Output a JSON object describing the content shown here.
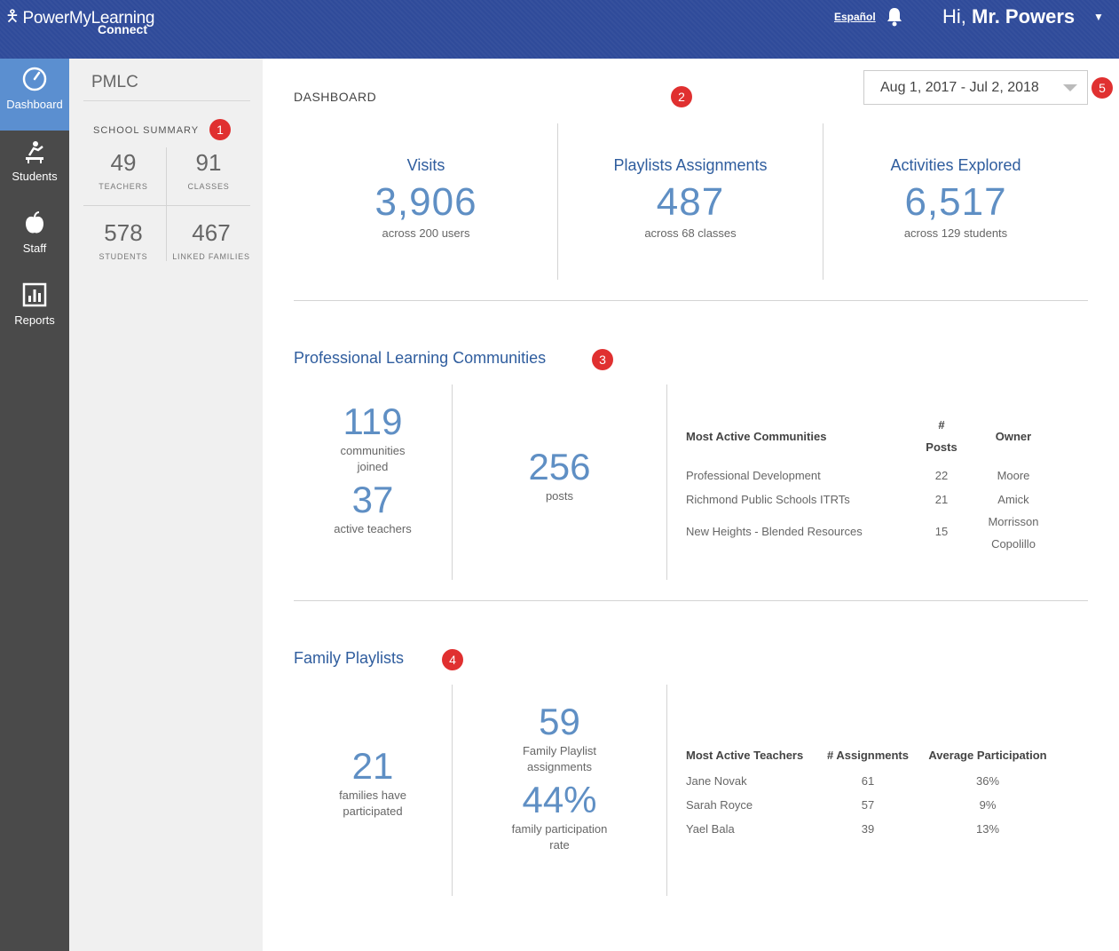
{
  "header": {
    "logo_brand": "PowerMyLearning",
    "logo_sub": "Connect",
    "espanol": "Español",
    "greeting": "Hi,",
    "user": "Mr. Powers"
  },
  "nav": {
    "items": [
      {
        "label": "Dashboard",
        "icon": "speedometer-icon"
      },
      {
        "label": "Students",
        "icon": "student-desk-icon"
      },
      {
        "label": "Staff",
        "icon": "apple-icon"
      },
      {
        "label": "Reports",
        "icon": "bar-chart-icon"
      }
    ]
  },
  "summary": {
    "org": "PMLC",
    "title": "SCHOOL SUMMARY",
    "stats": [
      {
        "value": "49",
        "label": "TEACHERS"
      },
      {
        "value": "91",
        "label": "CLASSES"
      },
      {
        "value": "578",
        "label": "STUDENTS"
      },
      {
        "value": "467",
        "label": "LINKED FAMILIES"
      }
    ]
  },
  "markers": [
    "1",
    "2",
    "3",
    "4",
    "5"
  ],
  "dashboard": {
    "title": "DASHBOARD",
    "date_range": "Aug 1, 2017 - Jul 2, 2018",
    "kpis": [
      {
        "title": "Visits",
        "value": "3,906",
        "sub": "across 200 users"
      },
      {
        "title": "Playlists Assignments",
        "value": "487",
        "sub": "across 68 classes"
      },
      {
        "title": "Activities Explored",
        "value": "6,517",
        "sub": "across 129 students"
      }
    ]
  },
  "plc": {
    "title": "Professional Learning Communities",
    "communities_value": "119",
    "communities_label_1": "communities",
    "communities_label_2": "joined",
    "teachers_value": "37",
    "teachers_label": "active teachers",
    "posts_value": "256",
    "posts_label": "posts",
    "table": {
      "h1": "Most Active Communities",
      "h2a": "#",
      "h2b": "Posts",
      "h3": "Owner",
      "rows": [
        {
          "name": "Professional Development",
          "posts": "22",
          "owner": "Moore"
        },
        {
          "name": "Richmond Public Schools ITRTs",
          "posts": "21",
          "owner": "Amick"
        },
        {
          "name": "New Heights - Blended Resources",
          "posts": "15",
          "owner": "Morrisson",
          "owner2": "Copolillo"
        }
      ]
    }
  },
  "family": {
    "title": "Family Playlists",
    "families_value": "21",
    "families_label_1": "families have",
    "families_label_2": "participated",
    "assign_value": "59",
    "assign_label_1": "Family Playlist",
    "assign_label_2": "assignments",
    "rate_value": "44%",
    "rate_label_1": "family participation",
    "rate_label_2": "rate",
    "table": {
      "h1": "Most Active Teachers",
      "h2": "# Assignments",
      "h3": "Average Participation",
      "rows": [
        {
          "name": "Jane Novak",
          "assignments": "61",
          "participation": "36%"
        },
        {
          "name": "Sarah Royce",
          "assignments": "57",
          "participation": "9%"
        },
        {
          "name": "Yael Bala",
          "assignments": "39",
          "participation": "13%"
        }
      ]
    }
  },
  "colors": {
    "header": "#2f4b9a",
    "nav": "#4a4a4a",
    "nav_active": "#5b8fd0",
    "accent": "#2f5d9e",
    "number": "#5f8fc4",
    "marker": "#e03030"
  }
}
